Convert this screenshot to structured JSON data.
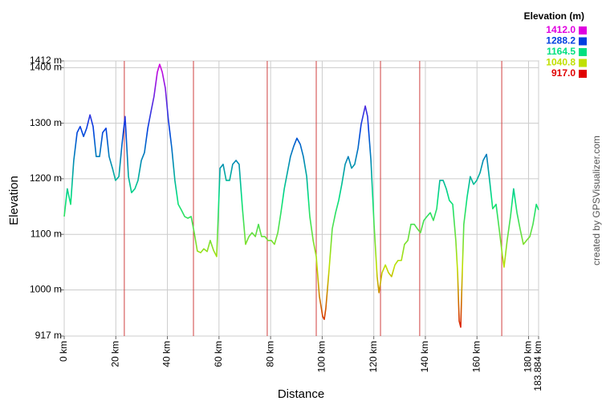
{
  "chart_data": {
    "type": "line",
    "xlabel": "Distance",
    "ylabel": "Elevation",
    "credit": "created by GPSVisualizer.com",
    "xlim": [
      0,
      183.884
    ],
    "ylim": [
      917,
      1412
    ],
    "xticks": [
      {
        "value": 0,
        "label": "0 km"
      },
      {
        "value": 20,
        "label": "20 km"
      },
      {
        "value": 40,
        "label": "40 km"
      },
      {
        "value": 60,
        "label": "60 km"
      },
      {
        "value": 80,
        "label": "80 km"
      },
      {
        "value": 100,
        "label": "100 km"
      },
      {
        "value": 120,
        "label": "120 km"
      },
      {
        "value": 140,
        "label": "140 km"
      },
      {
        "value": 160,
        "label": "160 km"
      },
      {
        "value": 180,
        "label": "180 km"
      },
      {
        "value": 183.884,
        "label": "183.884 km"
      }
    ],
    "yticks": [
      {
        "value": 917,
        "label": "917 m"
      },
      {
        "value": 1000,
        "label": "1000 m"
      },
      {
        "value": 1100,
        "label": "1100 m"
      },
      {
        "value": 1200,
        "label": "1200 m"
      },
      {
        "value": 1300,
        "label": "1300 m"
      },
      {
        "value": 1400,
        "label": "1400 m"
      },
      {
        "value": 1412,
        "label": "1412 m"
      }
    ],
    "grid": true,
    "markers": [
      23.3,
      50.1,
      78.7,
      97.7,
      122.6,
      137.8,
      169.6
    ],
    "marker_color": "#d04040",
    "color_scale": {
      "title": "Elevation (m)",
      "stops": [
        {
          "value": 1412,
          "label": "1412.0",
          "color": "#e000e0"
        },
        {
          "value": 1288.2,
          "label": "1288.2",
          "color": "#0040e0"
        },
        {
          "value": 1164.5,
          "label": "1164.5",
          "color": "#00e080"
        },
        {
          "value": 1040.8,
          "label": "1040.8",
          "color": "#c0e000"
        },
        {
          "value": 917,
          "label": "917.0",
          "color": "#e00000"
        }
      ]
    },
    "x": [
      0,
      1.2,
      2.5,
      3.7,
      5.0,
      6.2,
      7.5,
      8.7,
      10.0,
      11.2,
      12.4,
      13.7,
      14.9,
      16.2,
      17.4,
      18.7,
      19.9,
      21.2,
      22.4,
      23.6,
      24.9,
      26.1,
      27.4,
      28.6,
      29.9,
      31.1,
      32.4,
      33.6,
      34.8,
      36.1,
      37.0,
      38.0,
      39.2,
      40.4,
      41.7,
      42.9,
      44.2,
      45.4,
      46.7,
      47.9,
      49.2,
      50.4,
      51.6,
      52.9,
      54.1,
      55.4,
      56.6,
      57.9,
      59.1,
      60.4,
      61.6,
      62.8,
      64.1,
      65.3,
      66.6,
      67.8,
      69.1,
      70.3,
      71.6,
      72.8,
      74.1,
      75.3,
      76.5,
      77.8,
      79.0,
      80.3,
      81.5,
      82.8,
      84.0,
      85.3,
      86.5,
      87.7,
      89.0,
      90.2,
      91.5,
      92.7,
      94.0,
      95.2,
      96.5,
      97.7,
      98.9,
      100.2,
      100.8,
      101.4,
      102.7,
      103.9,
      105.2,
      106.4,
      107.6,
      108.9,
      110.1,
      111.4,
      112.6,
      113.9,
      115.1,
      116.7,
      117.6,
      118.9,
      120.1,
      121.3,
      122.0,
      123.2,
      124.5,
      125.7,
      126.9,
      128.2,
      129.4,
      130.7,
      131.9,
      133.2,
      134.4,
      135.7,
      136.9,
      138.1,
      139.4,
      140.6,
      141.9,
      143.1,
      144.4,
      145.6,
      146.9,
      148.1,
      149.3,
      150.6,
      151.8,
      152.5,
      153.1,
      153.7,
      154.3,
      154.9,
      156.2,
      157.4,
      158.7,
      159.9,
      161.2,
      162.4,
      163.7,
      164.9,
      166.1,
      167.4,
      168.6,
      169.9,
      170.5,
      171.7,
      173.0,
      174.2,
      175.5,
      176.7,
      178.0,
      179.2,
      180.5,
      181.7,
      183.0,
      183.884
    ],
    "values": [
      1132,
      1182,
      1154,
      1233,
      1283,
      1294,
      1276,
      1291,
      1315,
      1294,
      1240,
      1240,
      1283,
      1291,
      1240,
      1219,
      1197,
      1204,
      1262,
      1312,
      1204,
      1175,
      1182,
      1197,
      1233,
      1247,
      1291,
      1320,
      1348,
      1392,
      1406,
      1392,
      1363,
      1305,
      1255,
      1197,
      1154,
      1144,
      1132,
      1129,
      1132,
      1103,
      1070,
      1067,
      1074,
      1069,
      1089,
      1071,
      1060,
      1219,
      1226,
      1197,
      1197,
      1226,
      1233,
      1226,
      1146,
      1082,
      1096,
      1103,
      1096,
      1118,
      1096,
      1096,
      1089,
      1089,
      1082,
      1103,
      1139,
      1182,
      1211,
      1240,
      1259,
      1273,
      1262,
      1240,
      1204,
      1132,
      1089,
      1060,
      989,
      952,
      947,
      966,
      1038,
      1110,
      1139,
      1161,
      1190,
      1226,
      1240,
      1219,
      1226,
      1255,
      1298,
      1331,
      1312,
      1233,
      1118,
      1024,
      995,
      1031,
      1045,
      1031,
      1024,
      1045,
      1053,
      1053,
      1082,
      1089,
      1118,
      1118,
      1110,
      1103,
      1125,
      1132,
      1139,
      1125,
      1146,
      1197,
      1197,
      1182,
      1161,
      1154,
      1089,
      1031,
      944,
      933,
      1031,
      1118,
      1168,
      1204,
      1190,
      1197,
      1211,
      1233,
      1244,
      1197,
      1146,
      1154,
      1110,
      1060,
      1041,
      1089,
      1132,
      1182,
      1139,
      1110,
      1082,
      1089,
      1096,
      1118,
      1154,
      1144
    ]
  }
}
